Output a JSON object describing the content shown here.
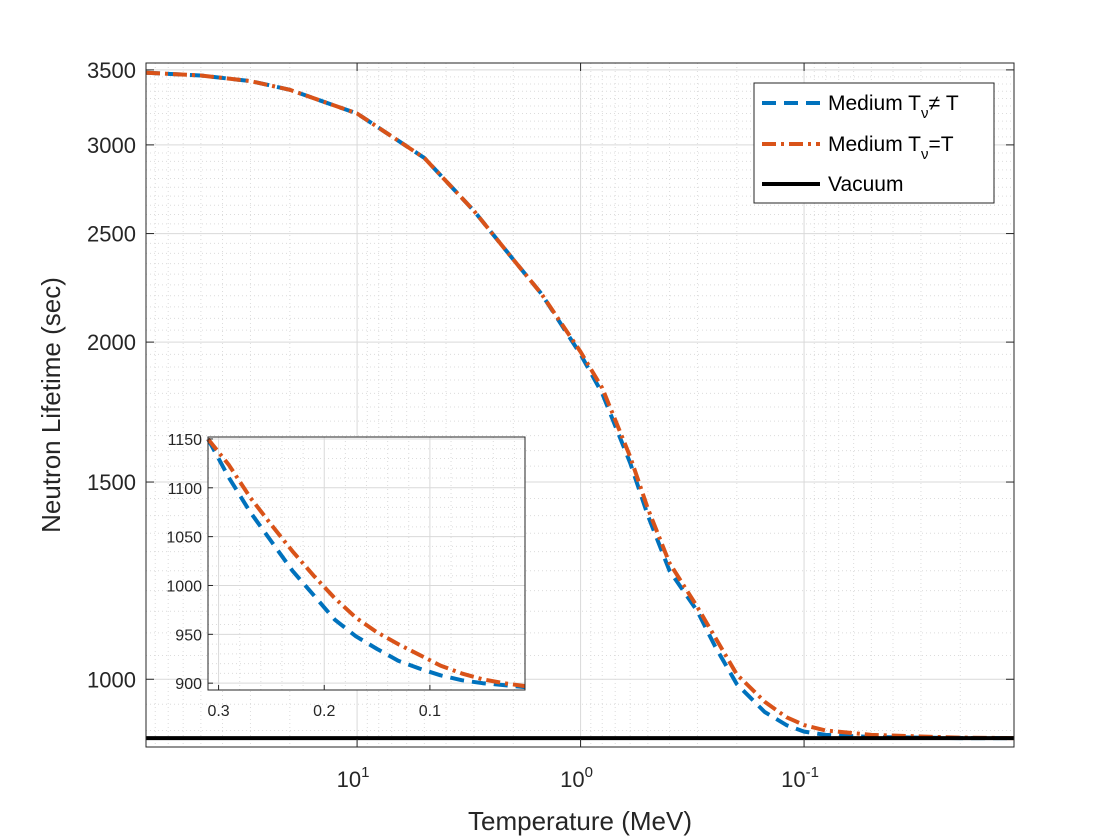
{
  "chart_data": [
    {
      "type": "line",
      "xlabel": "Temperature (MeV)",
      "ylabel": "Neutron Lifetime (sec)",
      "x_scale": "log",
      "x_reversed": true,
      "y_scale": "log",
      "xlim": [
        88,
        0.0115
      ],
      "ylim": [
        870,
        3550
      ],
      "grid": "major and minor, dotted",
      "y_ticks": [
        1000,
        1500,
        2000,
        2500,
        3000,
        3500
      ],
      "x_ticks": [
        {
          "value": 10,
          "base": "10",
          "exp": "1"
        },
        {
          "value": 1,
          "base": "10",
          "exp": "0"
        },
        {
          "value": 0.1,
          "base": "10",
          "exp": "-1"
        }
      ],
      "legend": {
        "position": "top-right",
        "entries": [
          {
            "base": "Medium T",
            "sub": "ν",
            "rest": "≠ T",
            "color": "#0072BD",
            "style": "dashed"
          },
          {
            "base": "Medium T",
            "sub": "ν",
            "rest": "=T",
            "color": "#D95319",
            "style": "dashdot"
          },
          {
            "base": "Vacuum",
            "sub": "",
            "rest": "",
            "color": "#000000",
            "style": "solid"
          }
        ]
      },
      "series": [
        {
          "name": "Medium Tν≠ T",
          "color": "#0072BD",
          "style": "dashed",
          "x": [
            88,
            50,
            30,
            20,
            10,
            5,
            3,
            2,
            1.5,
            1,
            0.8,
            0.6,
            0.5,
            0.4,
            0.3,
            0.25,
            0.2,
            0.15,
            0.12,
            0.1,
            0.08,
            0.05,
            0.03,
            0.02,
            0.0115
          ],
          "y": [
            3480,
            3460,
            3420,
            3360,
            3200,
            2920,
            2620,
            2370,
            2210,
            1950,
            1800,
            1560,
            1400,
            1250,
            1150,
            1070,
            990,
            935,
            910,
            898,
            892,
            888,
            887,
            886,
            886
          ]
        },
        {
          "name": "Medium Tν=T",
          "color": "#D95319",
          "style": "dashdot",
          "x": [
            88,
            50,
            30,
            20,
            10,
            5,
            3,
            2,
            1.5,
            1,
            0.8,
            0.6,
            0.5,
            0.4,
            0.3,
            0.25,
            0.2,
            0.15,
            0.12,
            0.1,
            0.08,
            0.05,
            0.03,
            0.02,
            0.0115
          ],
          "y": [
            3480,
            3460,
            3420,
            3360,
            3200,
            2920,
            2620,
            2370,
            2210,
            1960,
            1820,
            1580,
            1420,
            1270,
            1160,
            1090,
            1010,
            955,
            925,
            910,
            900,
            892,
            889,
            887,
            886
          ]
        },
        {
          "name": "Vacuum",
          "color": "#000000",
          "style": "solid",
          "x": [
            88,
            0.0115
          ],
          "y": [
            886,
            886
          ]
        }
      ]
    },
    {
      "type": "line",
      "role": "inset",
      "x_scale": "linear",
      "x_reversed": true,
      "xlim": [
        0.31,
        0.01
      ],
      "ylim": [
        893,
        1152
      ],
      "grid": "major and minor, dotted",
      "x_ticks": [
        {
          "value": 0.3,
          "label": "0.3"
        },
        {
          "value": 0.2,
          "label": "0.2"
        },
        {
          "value": 0.1,
          "label": "0.1"
        }
      ],
      "y_ticks": [
        900,
        950,
        1000,
        1050,
        1100,
        1150
      ],
      "series": [
        {
          "name": "Medium Tν≠ T",
          "color": "#0072BD",
          "style": "dashed",
          "x": [
            0.31,
            0.29,
            0.27,
            0.25,
            0.23,
            0.21,
            0.19,
            0.17,
            0.15,
            0.13,
            0.11,
            0.09,
            0.07,
            0.05,
            0.03,
            0.01
          ],
          "y": [
            1150,
            1110,
            1075,
            1045,
            1015,
            990,
            965,
            948,
            935,
            923,
            915,
            908,
            903,
            900,
            898,
            896
          ]
        },
        {
          "name": "Medium Tν=T",
          "color": "#D95319",
          "style": "dashdot",
          "x": [
            0.31,
            0.29,
            0.27,
            0.25,
            0.23,
            0.21,
            0.19,
            0.17,
            0.15,
            0.13,
            0.11,
            0.09,
            0.07,
            0.05,
            0.03,
            0.01
          ],
          "y": [
            1150,
            1123,
            1090,
            1062,
            1035,
            1010,
            987,
            967,
            952,
            940,
            929,
            918,
            910,
            904,
            900,
            897
          ]
        }
      ]
    }
  ]
}
